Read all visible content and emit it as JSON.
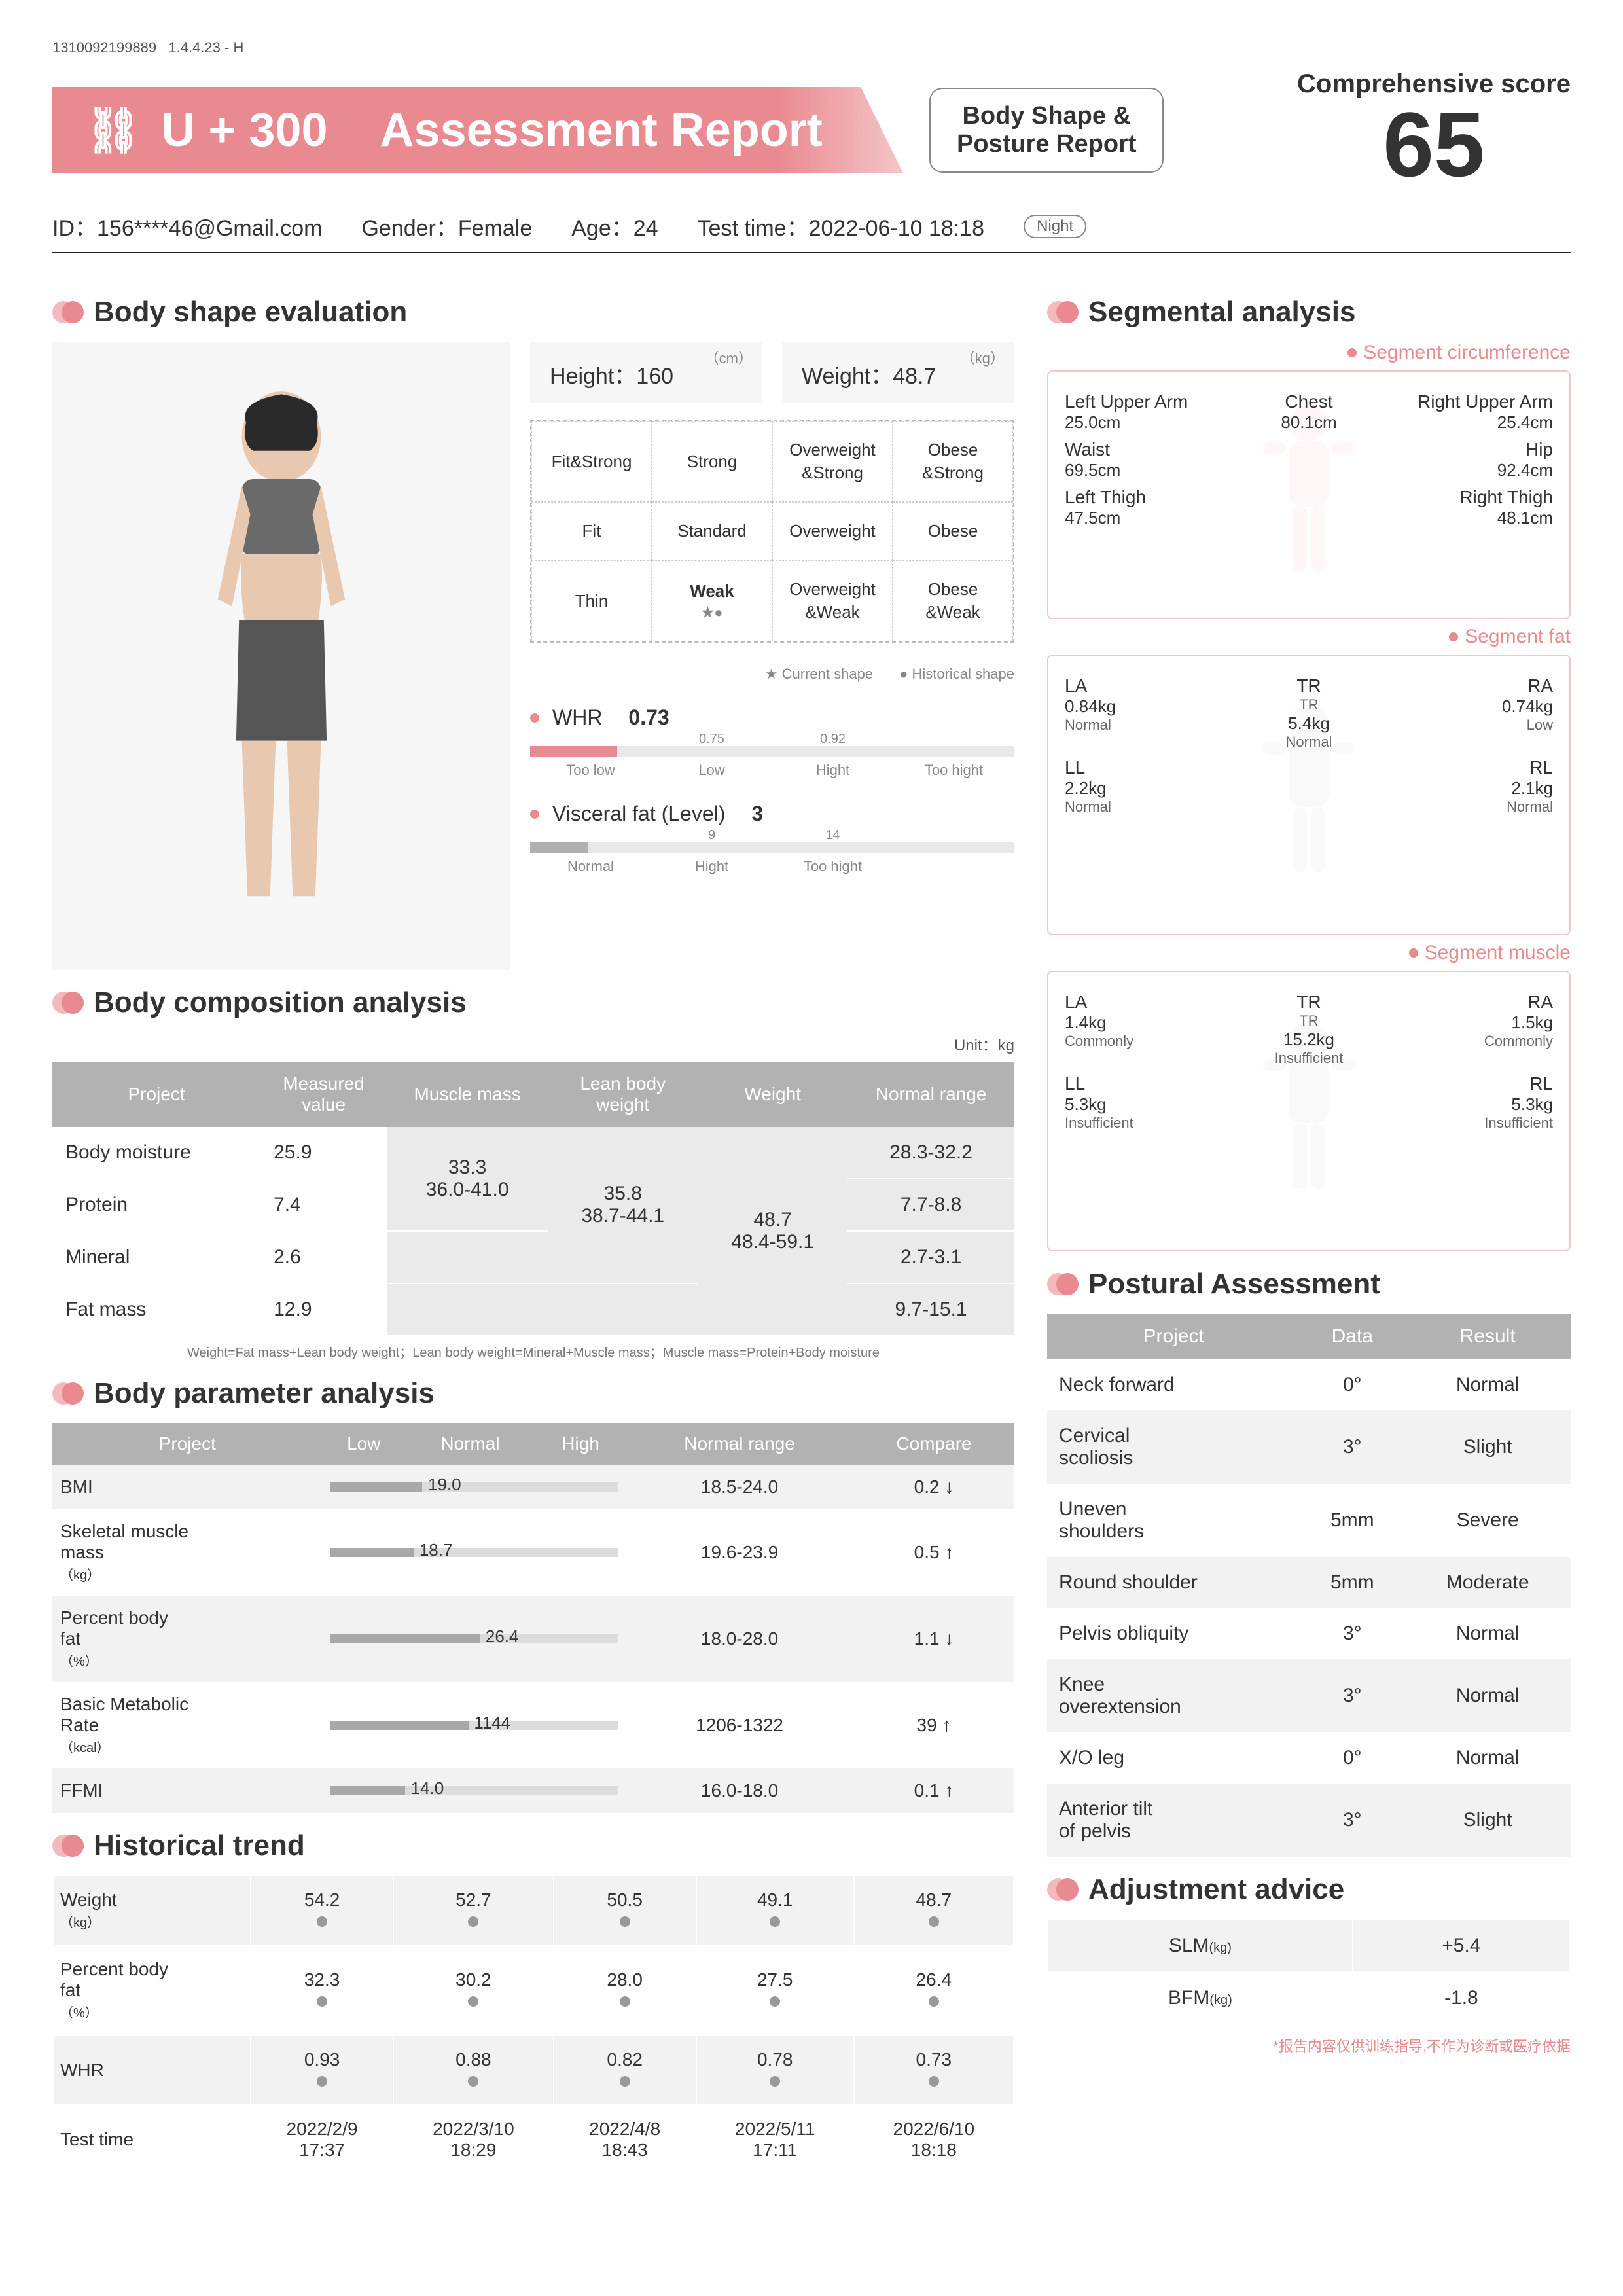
{
  "meta": {
    "serial": "1310092199889",
    "version": "1.4.4.23 - H"
  },
  "header": {
    "brand": "U + 300",
    "title": "Assessment Report",
    "subtitle_l1": "Body Shape &",
    "subtitle_l2": "Posture Report",
    "score_label": "Comprehensive score",
    "score_value": "65"
  },
  "user": {
    "id_label": "ID：",
    "id": "156****46@Gmail.com",
    "gender_label": "Gender：",
    "gender": "Female",
    "age_label": "Age：",
    "age": "24",
    "time_label": "Test time：",
    "time": "2022-06-10 18:18",
    "night": "Night"
  },
  "titles": {
    "shape": "Body shape evaluation",
    "composition": "Body composition analysis",
    "parameter": "Body parameter analysis",
    "trend": "Historical trend",
    "segmental": "Segmental analysis",
    "posture": "Postural Assessment",
    "advice": "Adjustment advice"
  },
  "shape": {
    "height_label": "Height：",
    "height": "160",
    "height_unit": "（cm）",
    "weight_label": "Weight：",
    "weight": "48.7",
    "weight_unit": "（kg）",
    "grid": [
      [
        "Fit&Strong",
        "Strong",
        "Overweight\n&Strong",
        "Obese\n&Strong"
      ],
      [
        "Fit",
        "Standard",
        "Overweight",
        "Obese"
      ],
      [
        "Thin",
        "Weak",
        "Overweight\n&Weak",
        "Obese\n&Weak"
      ]
    ],
    "current_idx": [
      2,
      1
    ],
    "legend_current": "Current shape",
    "legend_hist": "Historical shape",
    "whr": {
      "label": "WHR",
      "value": "0.73",
      "marks": [
        "",
        "0.75",
        "0.92",
        ""
      ],
      "labels": [
        "Too low",
        "Low",
        "Hight",
        "Too hight"
      ],
      "fill_pct": 18,
      "fill_color": "pink"
    },
    "vf": {
      "label": "Visceral fat (Level)",
      "value": "3",
      "marks": [
        "",
        "9",
        "14",
        ""
      ],
      "labels": [
        "Normal",
        "Hight",
        "Too hight",
        ""
      ],
      "fill_pct": 12,
      "fill_color": "gray"
    }
  },
  "composition": {
    "unit": "Unit：kg",
    "headers": [
      "Project",
      "Measured\nvalue",
      "Muscle mass",
      "Lean body\nweight",
      "Weight",
      "Normal range"
    ],
    "rows": [
      {
        "name": "Body moisture",
        "val": "25.9",
        "range": "28.3-32.2"
      },
      {
        "name": "Protein",
        "val": "7.4",
        "range": "7.7-8.8"
      },
      {
        "name": "Mineral",
        "val": "2.6",
        "range": "2.7-3.1"
      },
      {
        "name": "Fat mass",
        "val": "12.9",
        "range": "9.7-15.1"
      }
    ],
    "muscle_mass": "33.3\n36.0-41.0",
    "lean_body": "35.8\n38.7-44.1",
    "weight_cell": "48.7\n48.4-59.1",
    "foot": "Weight=Fat mass+Lean body weight；Lean body weight=Mineral+Muscle mass；Muscle mass=Protein+Body moisture"
  },
  "parameter": {
    "headers": [
      "Project",
      "Low",
      "Normal",
      "High",
      "Normal range",
      "Compare"
    ],
    "rows": [
      {
        "name": "BMI",
        "unit": "",
        "val": "19.0",
        "range": "18.5-24.0",
        "cmp": "0.2 ↓",
        "bar_pct": 32
      },
      {
        "name": "Skeletal muscle\nmass",
        "unit": "（kg）",
        "val": "18.7",
        "range": "19.6-23.9",
        "cmp": "0.5 ↑",
        "bar_pct": 29
      },
      {
        "name": "Percent body\nfat",
        "unit": "（%）",
        "val": "26.4",
        "range": "18.0-28.0",
        "cmp": "1.1 ↓",
        "bar_pct": 52
      },
      {
        "name": "Basic Metabolic\nRate",
        "unit": "（kcal）",
        "val": "1144",
        "range": "1206-1322",
        "cmp": "39 ↑",
        "bar_pct": 48
      },
      {
        "name": "FFMI",
        "unit": "",
        "val": "14.0",
        "range": "16.0-18.0",
        "cmp": "0.1 ↑",
        "bar_pct": 26
      }
    ]
  },
  "trend": {
    "rows": [
      {
        "label": "Weight",
        "unit": "（kg）",
        "vals": [
          "54.2",
          "52.7",
          "50.5",
          "49.1",
          "48.7"
        ]
      },
      {
        "label": "Percent body\nfat",
        "unit": "（%）",
        "vals": [
          "32.3",
          "30.2",
          "28.0",
          "27.5",
          "26.4"
        ]
      },
      {
        "label": "WHR",
        "unit": "",
        "vals": [
          "0.93",
          "0.88",
          "0.82",
          "0.78",
          "0.73"
        ]
      },
      {
        "label": "Test time",
        "unit": "",
        "vals": [
          "2022/2/9\n17:37",
          "2022/3/10\n18:29",
          "2022/4/8\n18:43",
          "2022/5/11\n17:11",
          "2022/6/10\n18:18"
        ]
      }
    ]
  },
  "segmental": {
    "sub_circ": "Segment circumference",
    "sub_fat": "Segment fat",
    "sub_muscle": "Segment muscle",
    "circ": {
      "lua": {
        "nm": "Left Upper Arm",
        "vl": "25.0cm"
      },
      "rua": {
        "nm": "Right Upper Arm",
        "vl": "25.4cm"
      },
      "chest": {
        "nm": "Chest",
        "vl": "80.1cm"
      },
      "waist": {
        "nm": "Waist",
        "vl": "69.5cm"
      },
      "hip": {
        "nm": "Hip",
        "vl": "92.4cm"
      },
      "lt": {
        "nm": "Left Thigh",
        "vl": "47.5cm"
      },
      "rt": {
        "nm": "Right Thigh",
        "vl": "48.1cm"
      }
    },
    "fat": {
      "la": {
        "nm": "LA",
        "vl": "0.84kg",
        "st": "Normal"
      },
      "ra": {
        "nm": "RA",
        "vl": "0.74kg",
        "st": "Low"
      },
      "tr": {
        "nm": "TR",
        "sub": "TR",
        "vl": "5.4kg",
        "st": "Normal"
      },
      "ll": {
        "nm": "LL",
        "vl": "2.2kg",
        "st": "Normal"
      },
      "rl": {
        "nm": "RL",
        "vl": "2.1kg",
        "st": "Normal"
      }
    },
    "muscle": {
      "la": {
        "nm": "LA",
        "vl": "1.4kg",
        "st": "Commonly"
      },
      "ra": {
        "nm": "RA",
        "vl": "1.5kg",
        "st": "Commonly"
      },
      "tr": {
        "nm": "TR",
        "sub": "TR",
        "vl": "15.2kg",
        "st": "Insufficient"
      },
      "ll": {
        "nm": "LL",
        "vl": "5.3kg",
        "st": "Insufficient"
      },
      "rl": {
        "nm": "RL",
        "vl": "5.3kg",
        "st": "Insufficient"
      }
    }
  },
  "posture": {
    "headers": [
      "Project",
      "Data",
      "Result"
    ],
    "rows": [
      {
        "p": "Neck forward",
        "d": "0°",
        "r": "Normal"
      },
      {
        "p": "Cervical\nscoliosis",
        "d": "3°",
        "r": "Slight"
      },
      {
        "p": "Uneven\nshoulders",
        "d": "5mm",
        "r": "Severe"
      },
      {
        "p": "Round shoulder",
        "d": "5mm",
        "r": "Moderate"
      },
      {
        "p": "Pelvis obliquity",
        "d": "3°",
        "r": "Normal"
      },
      {
        "p": "Knee\noverextension",
        "d": "3°",
        "r": "Normal"
      },
      {
        "p": "X/O leg",
        "d": "0°",
        "r": "Normal"
      },
      {
        "p": "Anterior tilt\nof pelvis",
        "d": "3°",
        "r": "Slight"
      }
    ]
  },
  "advice": {
    "rows": [
      {
        "l": "SLM",
        "u": "(kg)",
        "v": "+5.4"
      },
      {
        "l": "BFM",
        "u": "(kg)",
        "v": "-1.8"
      }
    ]
  },
  "disclaimer": "*报告内容仅供训练指导,不作为诊断或医疗依据"
}
